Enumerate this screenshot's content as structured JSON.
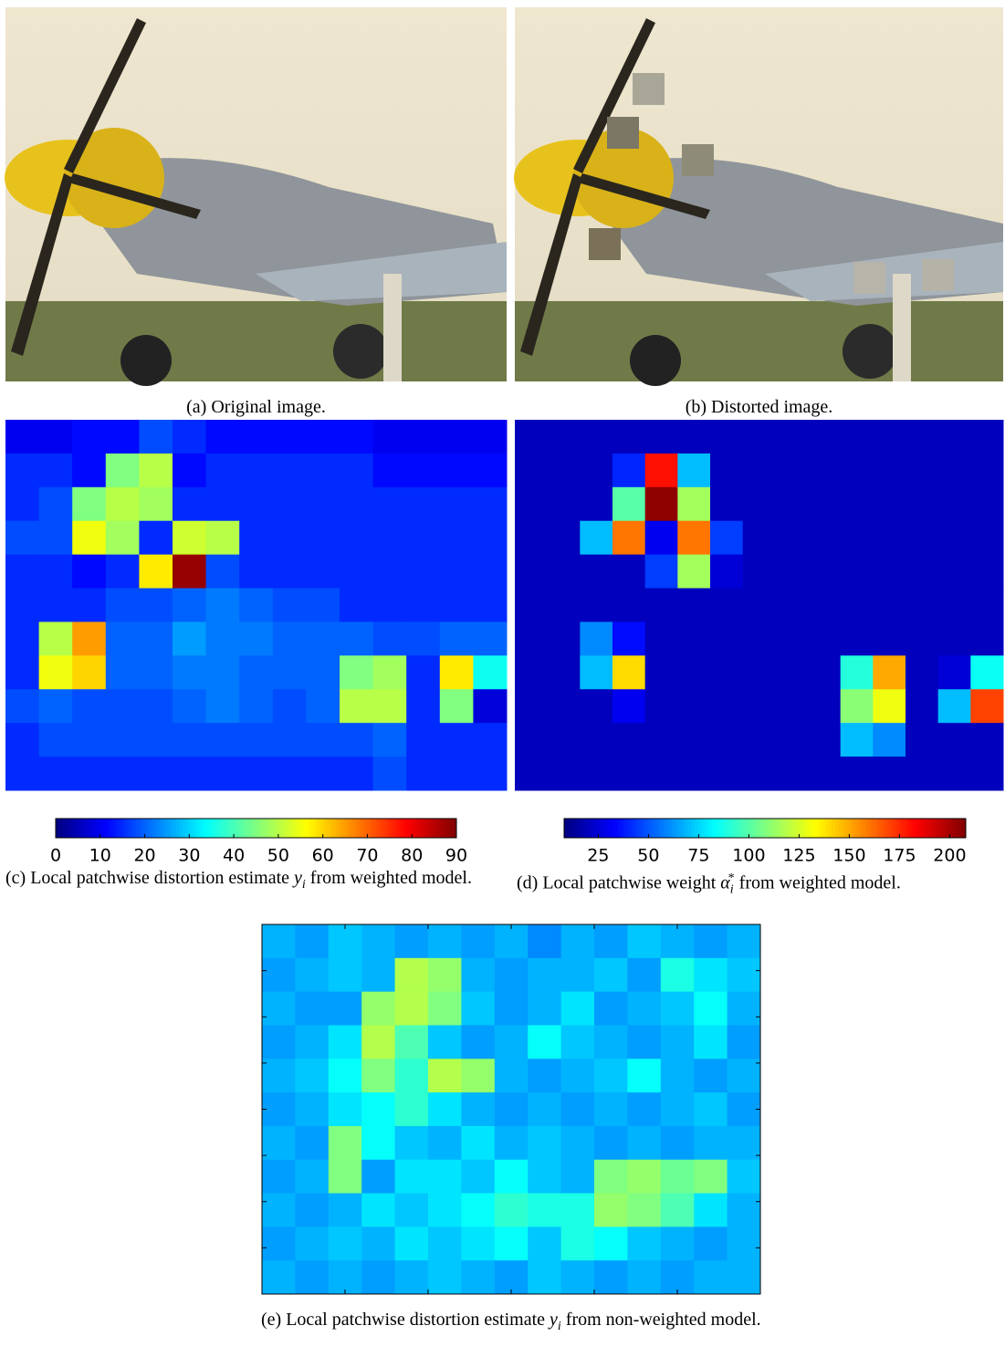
{
  "figure": {
    "panels": [
      {
        "caption": "(a) Original image."
      },
      {
        "caption": "(b) Distorted image."
      },
      {
        "caption": [
          "(c) Local patchwise distortion estimate ",
          "y",
          "i",
          " from weighted model."
        ]
      },
      {
        "caption": [
          "(d) Local patchwise weight ",
          "α",
          "i",
          "*",
          " from weighted model."
        ]
      },
      {
        "caption": [
          "(e) Local patchwise distortion estimate ",
          "y",
          "i",
          " from non-weighted model."
        ]
      }
    ]
  },
  "chart_data": [
    {
      "type": "heatmap",
      "colormap": "jet",
      "clim": [
        0,
        90
      ],
      "ticks": [
        0,
        10,
        20,
        30,
        40,
        50,
        60,
        70,
        80,
        90
      ],
      "values": [
        [
          10,
          10,
          12,
          12,
          18,
          15,
          12,
          12,
          12,
          12,
          12,
          10,
          10,
          10,
          10
        ],
        [
          15,
          15,
          12,
          45,
          50,
          12,
          15,
          15,
          15,
          15,
          15,
          12,
          12,
          12,
          12
        ],
        [
          15,
          18,
          45,
          50,
          48,
          15,
          15,
          15,
          15,
          15,
          15,
          15,
          15,
          15,
          15
        ],
        [
          18,
          18,
          55,
          48,
          15,
          52,
          50,
          15,
          15,
          15,
          15,
          15,
          15,
          15,
          15
        ],
        [
          15,
          15,
          12,
          15,
          58,
          88,
          18,
          15,
          15,
          15,
          15,
          15,
          15,
          15,
          15
        ],
        [
          15,
          15,
          15,
          18,
          18,
          20,
          22,
          20,
          18,
          18,
          15,
          15,
          15,
          15,
          15
        ],
        [
          15,
          50,
          65,
          20,
          20,
          25,
          22,
          22,
          20,
          20,
          20,
          18,
          18,
          20,
          20
        ],
        [
          15,
          55,
          60,
          20,
          20,
          22,
          22,
          20,
          20,
          20,
          45,
          48,
          15,
          58,
          35
        ],
        [
          18,
          20,
          18,
          18,
          18,
          20,
          22,
          20,
          18,
          20,
          50,
          50,
          15,
          45,
          8
        ],
        [
          15,
          18,
          18,
          18,
          18,
          18,
          18,
          18,
          18,
          18,
          18,
          20,
          15,
          15,
          15
        ],
        [
          15,
          15,
          15,
          15,
          15,
          15,
          15,
          15,
          15,
          15,
          15,
          18,
          15,
          15,
          15
        ]
      ]
    },
    {
      "type": "heatmap",
      "colormap": "jet",
      "clim": [
        8,
        208
      ],
      "ticks": [
        25,
        50,
        75,
        100,
        125,
        150,
        175,
        200
      ],
      "values": [
        [
          20,
          20,
          20,
          20,
          20,
          20,
          20,
          20,
          20,
          20,
          20,
          20,
          20,
          20,
          20
        ],
        [
          20,
          20,
          20,
          40,
          180,
          70,
          20,
          20,
          20,
          20,
          20,
          20,
          20,
          20,
          20
        ],
        [
          20,
          20,
          20,
          100,
          205,
          115,
          20,
          20,
          20,
          20,
          20,
          20,
          20,
          20,
          20
        ],
        [
          20,
          20,
          70,
          160,
          30,
          160,
          45,
          20,
          20,
          20,
          20,
          20,
          20,
          20,
          20
        ],
        [
          20,
          20,
          20,
          20,
          45,
          115,
          25,
          20,
          20,
          20,
          20,
          20,
          20,
          20,
          20
        ],
        [
          20,
          20,
          20,
          20,
          20,
          20,
          20,
          20,
          20,
          20,
          20,
          20,
          20,
          20,
          20
        ],
        [
          20,
          20,
          60,
          35,
          20,
          20,
          20,
          20,
          20,
          20,
          20,
          20,
          20,
          20,
          20
        ],
        [
          20,
          20,
          70,
          140,
          20,
          20,
          20,
          20,
          20,
          20,
          90,
          150,
          20,
          25,
          85
        ],
        [
          20,
          20,
          20,
          30,
          20,
          20,
          20,
          20,
          20,
          20,
          110,
          130,
          20,
          70,
          170
        ],
        [
          20,
          20,
          20,
          20,
          20,
          20,
          20,
          20,
          20,
          20,
          70,
          60,
          20,
          20,
          20
        ],
        [
          20,
          20,
          20,
          20,
          20,
          20,
          20,
          20,
          20,
          20,
          20,
          20,
          20,
          20,
          20
        ]
      ]
    },
    {
      "type": "heatmap",
      "colormap": "jet",
      "clim": [
        0,
        100
      ],
      "values": [
        [
          30,
          28,
          32,
          30,
          28,
          30,
          28,
          30,
          26,
          30,
          28,
          32,
          30,
          28,
          30
        ],
        [
          28,
          30,
          32,
          30,
          55,
          52,
          30,
          28,
          30,
          30,
          32,
          28,
          40,
          35,
          32
        ],
        [
          30,
          28,
          28,
          52,
          55,
          50,
          32,
          28,
          30,
          35,
          28,
          30,
          32,
          38,
          30
        ],
        [
          28,
          30,
          35,
          55,
          45,
          32,
          28,
          30,
          38,
          32,
          30,
          28,
          30,
          35,
          28
        ],
        [
          30,
          32,
          38,
          50,
          42,
          55,
          52,
          30,
          28,
          30,
          32,
          38,
          30,
          28,
          30
        ],
        [
          28,
          30,
          35,
          38,
          42,
          35,
          30,
          28,
          30,
          28,
          30,
          28,
          30,
          32,
          28
        ],
        [
          30,
          28,
          50,
          38,
          32,
          30,
          35,
          30,
          32,
          30,
          28,
          30,
          28,
          30,
          30
        ],
        [
          28,
          30,
          50,
          28,
          35,
          35,
          32,
          38,
          32,
          30,
          50,
          52,
          48,
          50,
          32
        ],
        [
          30,
          28,
          30,
          35,
          32,
          35,
          38,
          42,
          40,
          40,
          52,
          50,
          45,
          35,
          30
        ],
        [
          28,
          30,
          32,
          30,
          35,
          32,
          35,
          38,
          32,
          40,
          38,
          32,
          30,
          28,
          30
        ],
        [
          30,
          28,
          30,
          28,
          30,
          32,
          30,
          28,
          32,
          30,
          28,
          30,
          28,
          30,
          30
        ]
      ]
    }
  ]
}
